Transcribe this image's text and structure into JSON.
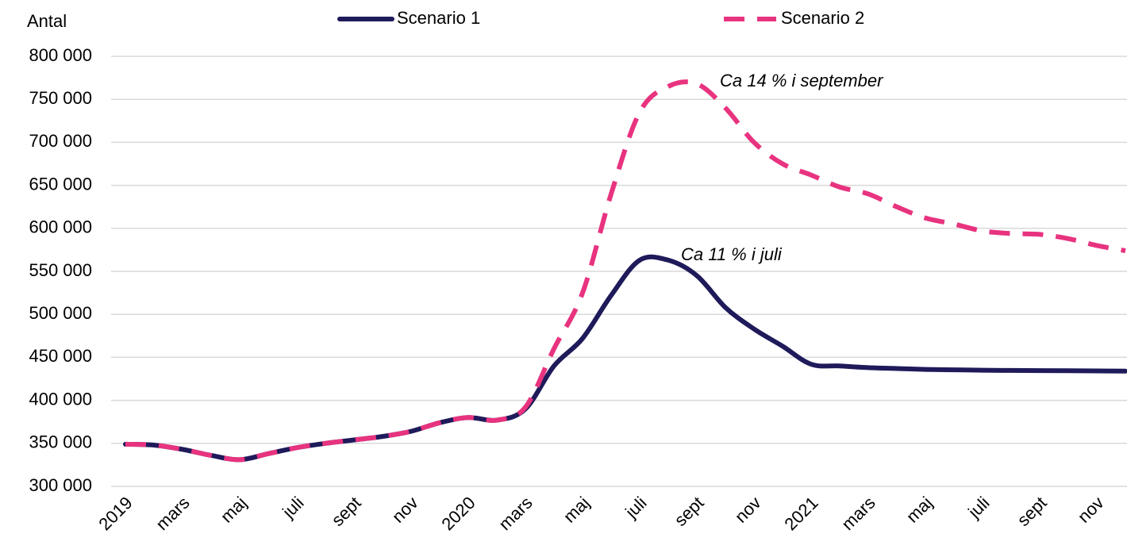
{
  "chart_data": {
    "type": "line",
    "y_label": "Antal",
    "categories": [
      "2019",
      null,
      "mars",
      null,
      "maj",
      null,
      "juli",
      null,
      "sept",
      null,
      "nov",
      null,
      "2020",
      null,
      "mars",
      null,
      "maj",
      null,
      "juli",
      null,
      "sept",
      null,
      "nov",
      null,
      "2021",
      null,
      "mars",
      null,
      "maj",
      null,
      "juli",
      null,
      "sept",
      null,
      "nov",
      null
    ],
    "series": [
      {
        "name": "Scenario 1",
        "color": "#1f1a5a",
        "dashed": false,
        "values": [
          349000,
          348000,
          343000,
          336000,
          331000,
          338000,
          345000,
          350000,
          354000,
          358000,
          364000,
          374000,
          380000,
          377000,
          390000,
          440000,
          472000,
          522000,
          563000,
          563000,
          545000,
          508000,
          483000,
          463000,
          442000,
          440000,
          438000,
          437000,
          436000,
          435500,
          435000,
          434800,
          434600,
          434400,
          434200,
          434000
        ]
      },
      {
        "name": "Scenario 2",
        "color": "#e8337f",
        "dashed": true,
        "values": [
          349000,
          348000,
          343000,
          336000,
          331000,
          338000,
          345000,
          350000,
          354000,
          358000,
          364000,
          374000,
          380000,
          377000,
          392000,
          460000,
          525000,
          640000,
          735000,
          765000,
          768000,
          740000,
          700000,
          675000,
          662000,
          648000,
          640000,
          625000,
          612000,
          605000,
          597000,
          594000,
          593000,
          588000,
          580000,
          574000
        ]
      }
    ],
    "annotations": [
      "Ca 14 % i september",
      "Ca 11 % i juli"
    ],
    "ylim": [
      300000,
      800000
    ],
    "yticks": [
      {
        "value": 300000,
        "label": "300 000"
      },
      {
        "value": 350000,
        "label": "350 000"
      },
      {
        "value": 400000,
        "label": "400 000"
      },
      {
        "value": 450000,
        "label": "450 000"
      },
      {
        "value": 500000,
        "label": "500 000"
      },
      {
        "value": 550000,
        "label": "550 000"
      },
      {
        "value": 600000,
        "label": "600 000"
      },
      {
        "value": 650000,
        "label": "650 000"
      },
      {
        "value": 700000,
        "label": "700 000"
      },
      {
        "value": 750000,
        "label": "750 000"
      },
      {
        "value": 800000,
        "label": "800 000"
      }
    ],
    "grid": true,
    "legend": "top"
  }
}
